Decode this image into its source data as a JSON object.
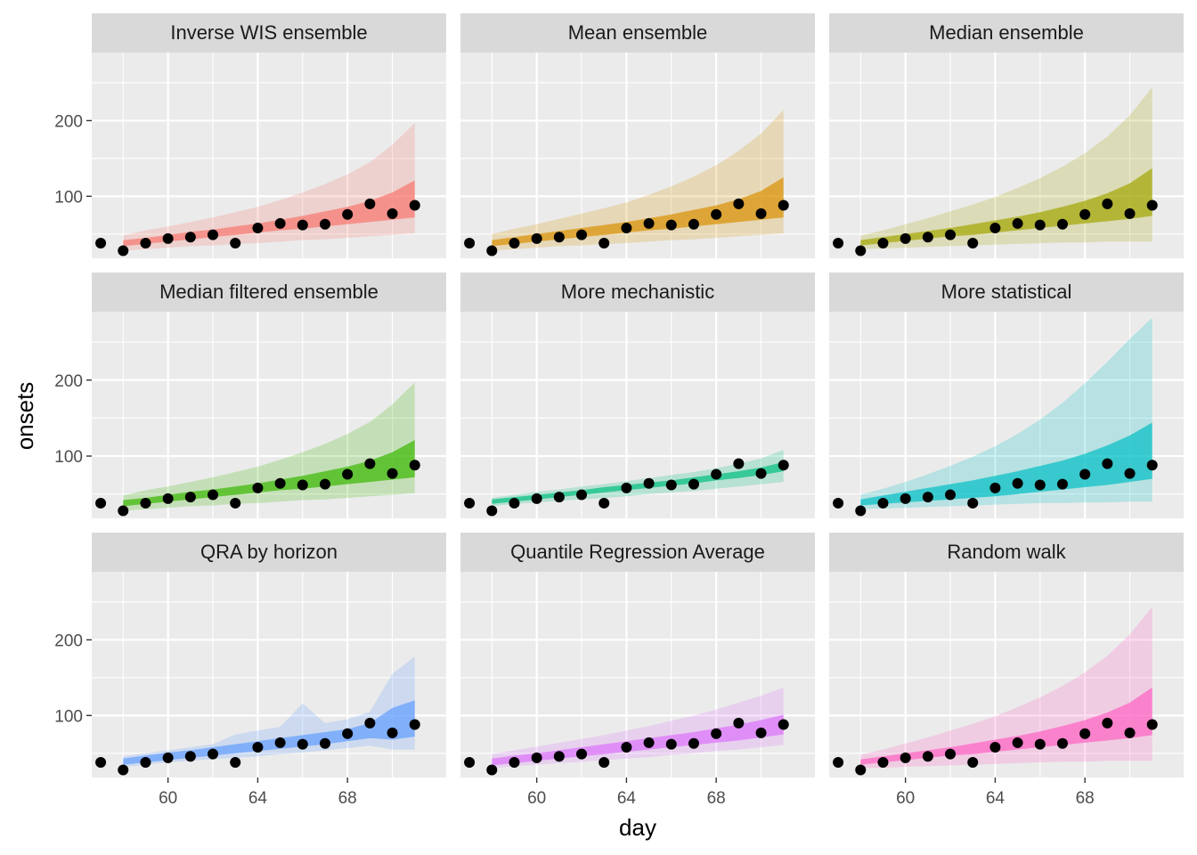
{
  "chart_data": {
    "type": "area",
    "xlabel": "day",
    "ylabel": "onsets",
    "xlim": [
      56.6,
      72.4
    ],
    "ylim": [
      18,
      290
    ],
    "x_ticks": [
      60,
      64,
      68
    ],
    "y_ticks": [
      100,
      200
    ],
    "grid": true,
    "background": "#ebebeb",
    "strip_background": "#d9d9d9",
    "observed": {
      "x": [
        57,
        58,
        59,
        60,
        61,
        62,
        63,
        64,
        65,
        66,
        67,
        68,
        69,
        70,
        71
      ],
      "y": [
        38,
        28,
        38,
        44,
        46,
        49,
        38,
        58,
        64,
        62,
        63,
        76,
        90,
        77,
        88
      ]
    },
    "panels": [
      {
        "title": "Inverse WIS ensemble",
        "color": "#F8766D",
        "band": {
          "x": [
            58,
            59,
            60,
            61,
            62,
            63,
            64,
            65,
            66,
            67,
            68,
            69,
            70,
            71
          ],
          "outer_lower": [
            28,
            30,
            32,
            34,
            35,
            37,
            38,
            40,
            42,
            43,
            45,
            47,
            49,
            51
          ],
          "outer_upper": [
            48,
            55,
            60,
            66,
            72,
            79,
            86,
            95,
            105,
            116,
            129,
            145,
            168,
            197
          ],
          "inner_lower": [
            34,
            37,
            40,
            43,
            46,
            49,
            52,
            55,
            57,
            60,
            63,
            66,
            69,
            72
          ],
          "inner_upper": [
            42,
            45,
            49,
            53,
            56,
            60,
            64,
            69,
            74,
            80,
            86,
            94,
            105,
            121
          ]
        }
      },
      {
        "title": "Mean ensemble",
        "color": "#D89000",
        "band": {
          "x": [
            58,
            59,
            60,
            61,
            62,
            63,
            64,
            65,
            66,
            67,
            68,
            69,
            70,
            71
          ],
          "outer_lower": [
            28,
            30,
            32,
            34,
            35,
            37,
            38,
            40,
            42,
            43,
            45,
            47,
            49,
            51
          ],
          "outer_upper": [
            50,
            57,
            63,
            70,
            77,
            84,
            92,
            102,
            113,
            126,
            141,
            160,
            183,
            214
          ],
          "inner_lower": [
            34,
            37,
            40,
            43,
            46,
            49,
            52,
            55,
            57,
            60,
            63,
            66,
            69,
            72
          ],
          "inner_upper": [
            42,
            46,
            50,
            54,
            58,
            62,
            66,
            71,
            76,
            82,
            88,
            96,
            107,
            125
          ]
        }
      },
      {
        "title": "Median ensemble",
        "color": "#A3A500",
        "band": {
          "x": [
            58,
            59,
            60,
            61,
            62,
            63,
            64,
            65,
            66,
            67,
            68,
            69,
            70,
            71
          ],
          "outer_lower": [
            30,
            31,
            32,
            33,
            34,
            35,
            36,
            37,
            38,
            39,
            39,
            40,
            40,
            40
          ],
          "outer_upper": [
            48,
            55,
            63,
            71,
            80,
            89,
            99,
            111,
            124,
            139,
            157,
            179,
            207,
            244
          ],
          "inner_lower": [
            35,
            38,
            41,
            44,
            47,
            49,
            52,
            55,
            58,
            61,
            64,
            67,
            70,
            74
          ],
          "inner_upper": [
            42,
            46,
            50,
            54,
            58,
            63,
            68,
            73,
            79,
            86,
            94,
            104,
            117,
            137
          ]
        }
      },
      {
        "title": "Median filtered ensemble",
        "color": "#39B600",
        "band": {
          "x": [
            58,
            59,
            60,
            61,
            62,
            63,
            64,
            65,
            66,
            67,
            68,
            69,
            70,
            71
          ],
          "outer_lower": [
            28,
            30,
            32,
            34,
            35,
            37,
            38,
            40,
            42,
            43,
            45,
            47,
            49,
            51
          ],
          "outer_upper": [
            48,
            55,
            60,
            66,
            72,
            79,
            86,
            95,
            105,
            116,
            129,
            145,
            168,
            197
          ],
          "inner_lower": [
            34,
            37,
            40,
            43,
            46,
            49,
            52,
            55,
            57,
            60,
            63,
            66,
            69,
            72
          ],
          "inner_upper": [
            42,
            45,
            49,
            53,
            56,
            60,
            64,
            69,
            74,
            80,
            86,
            94,
            105,
            121
          ]
        }
      },
      {
        "title": "More mechanistic",
        "color": "#00BF7D",
        "band": {
          "x": [
            58,
            59,
            60,
            61,
            62,
            63,
            64,
            65,
            66,
            67,
            68,
            69,
            70,
            71
          ],
          "outer_lower": [
            34,
            37,
            39,
            41,
            43,
            45,
            47,
            50,
            52,
            54,
            57,
            60,
            63,
            66
          ],
          "outer_upper": [
            45,
            49,
            53,
            56,
            60,
            63,
            67,
            71,
            75,
            79,
            84,
            90,
            97,
            108
          ],
          "inner_lower": [
            37,
            40,
            43,
            46,
            49,
            52,
            55,
            58,
            61,
            64,
            68,
            71,
            75,
            80
          ],
          "inner_upper": [
            43,
            46,
            49,
            52,
            55,
            59,
            62,
            65,
            68,
            72,
            76,
            80,
            85,
            92
          ]
        }
      },
      {
        "title": "More statistical",
        "color": "#00BFC4",
        "band": {
          "x": [
            58,
            59,
            60,
            61,
            62,
            63,
            64,
            65,
            66,
            67,
            68,
            69,
            70,
            71
          ],
          "outer_lower": [
            30,
            31,
            32,
            33,
            34,
            35,
            36,
            37,
            38,
            38,
            39,
            39,
            40,
            40
          ],
          "outer_upper": [
            49,
            57,
            66,
            76,
            87,
            99,
            113,
            129,
            148,
            170,
            196,
            224,
            254,
            282
          ],
          "inner_lower": [
            35,
            37,
            39,
            41,
            43,
            45,
            47,
            50,
            53,
            56,
            59,
            62,
            66,
            70
          ],
          "inner_upper": [
            43,
            48,
            53,
            58,
            63,
            68,
            74,
            80,
            87,
            94,
            103,
            114,
            127,
            144
          ]
        }
      },
      {
        "title": "QRA by horizon",
        "color": "#619CFF",
        "band": {
          "x": [
            58,
            59,
            60,
            61,
            62,
            63,
            64,
            65,
            66,
            67,
            68,
            69,
            70,
            71
          ],
          "outer_lower": [
            32,
            35,
            38,
            40,
            42,
            44,
            46,
            49,
            51,
            54,
            57,
            60,
            55,
            55
          ],
          "outer_upper": [
            46,
            50,
            54,
            58,
            62,
            75,
            80,
            85,
            116,
            90,
            95,
            105,
            155,
            178
          ],
          "inner_lower": [
            35,
            38,
            41,
            44,
            47,
            50,
            53,
            56,
            59,
            62,
            66,
            70,
            68,
            72
          ],
          "inner_upper": [
            43,
            47,
            51,
            54,
            58,
            62,
            66,
            70,
            74,
            78,
            82,
            90,
            110,
            120
          ]
        }
      },
      {
        "title": "Quantile Regression Average",
        "color": "#DB72FB",
        "band": {
          "x": [
            58,
            59,
            60,
            61,
            62,
            63,
            64,
            65,
            66,
            67,
            68,
            69,
            70,
            71
          ],
          "outer_lower": [
            30,
            33,
            35,
            37,
            39,
            41,
            43,
            45,
            48,
            50,
            53,
            55,
            58,
            61
          ],
          "outer_upper": [
            49,
            54,
            59,
            64,
            69,
            74,
            80,
            86,
            93,
            100,
            108,
            117,
            126,
            137
          ],
          "inner_lower": [
            34,
            37,
            40,
            43,
            46,
            49,
            52,
            55,
            58,
            61,
            64,
            67,
            71,
            75
          ],
          "inner_upper": [
            43,
            47,
            50,
            54,
            58,
            62,
            66,
            70,
            74,
            78,
            83,
            88,
            94,
            101
          ]
        }
      },
      {
        "title": "Random walk",
        "color": "#FF61C3",
        "band": {
          "x": [
            58,
            59,
            60,
            61,
            62,
            63,
            64,
            65,
            66,
            67,
            68,
            69,
            70,
            71
          ],
          "outer_lower": [
            30,
            31,
            32,
            33,
            34,
            35,
            36,
            37,
            38,
            39,
            39,
            40,
            40,
            40
          ],
          "outer_upper": [
            48,
            55,
            63,
            71,
            80,
            89,
            99,
            111,
            124,
            139,
            157,
            179,
            207,
            244
          ],
          "inner_lower": [
            35,
            38,
            41,
            44,
            47,
            49,
            52,
            55,
            58,
            61,
            64,
            67,
            70,
            74
          ],
          "inner_upper": [
            42,
            46,
            50,
            54,
            58,
            63,
            68,
            73,
            79,
            86,
            94,
            104,
            117,
            137
          ]
        }
      }
    ]
  }
}
